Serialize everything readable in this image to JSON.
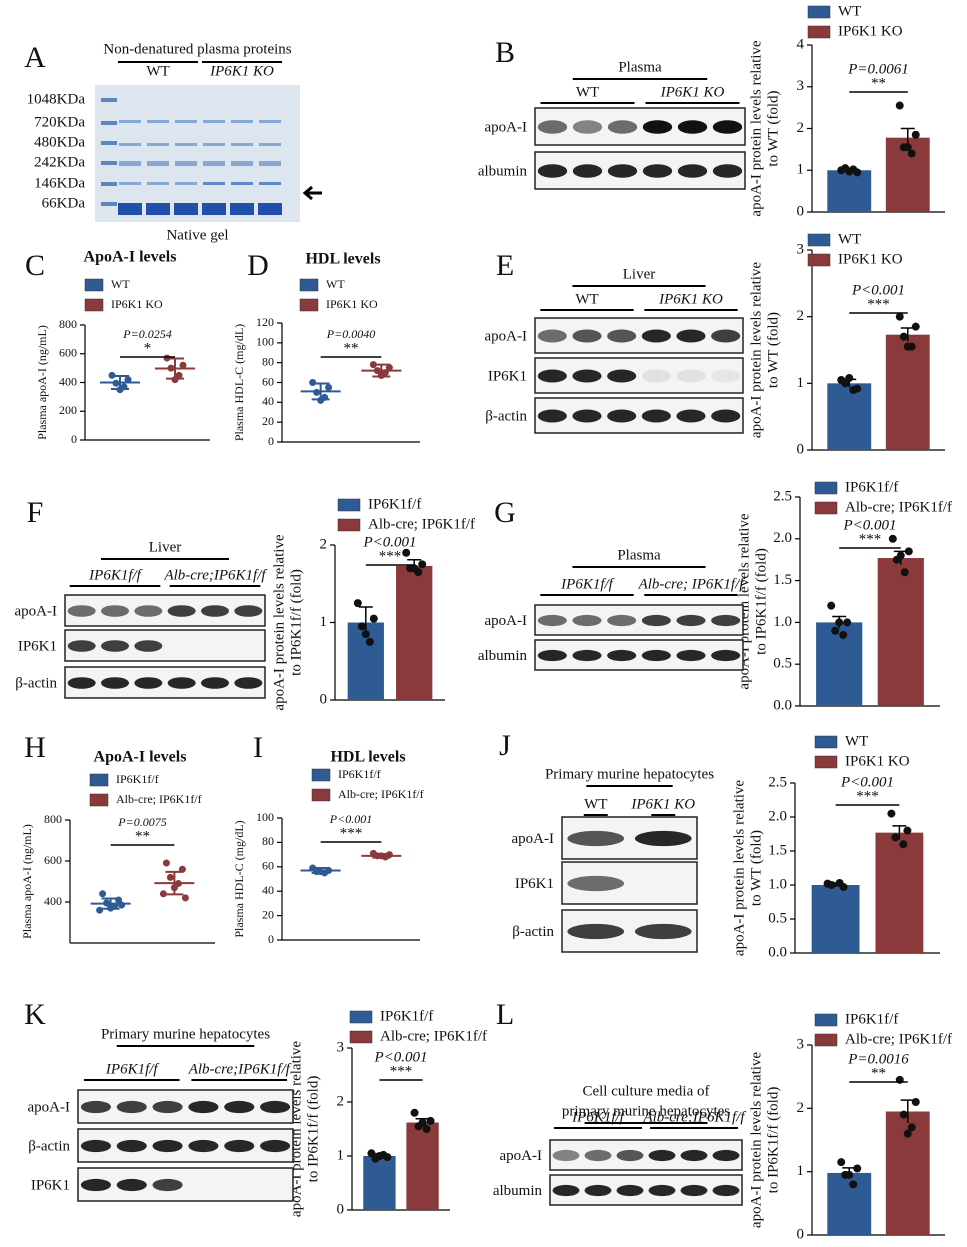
{
  "chart_data": [
    {
      "type": "bar",
      "ylabel": [
        "apoA-I protein levels relative",
        "to WT (fold)"
      ],
      "ylim": [
        0,
        4
      ],
      "yticks": [
        0,
        1,
        2,
        3,
        4
      ],
      "p_text": "P=0.0061",
      "sig": "**",
      "series": [
        {
          "name": "WT",
          "color": "#2f5b95",
          "values": [
            1.0
          ],
          "errors": [
            0.05
          ],
          "points": [
            1.0,
            0.95,
            1.05,
            1.02,
            0.97
          ]
        },
        {
          "name": "IP6K1 KO",
          "color": "#8b3a3b",
          "values": [
            1.78
          ],
          "errors": [
            0.22
          ],
          "points": [
            2.55,
            1.85,
            1.55,
            1.4,
            1.55
          ]
        }
      ]
    },
    {
      "type": "dot",
      "panel": "C",
      "title": "ApoA-I levels",
      "ylabel": [
        "Plasma apoA-I (ng/mL)"
      ],
      "ylim": [
        0,
        800
      ],
      "yticks": [
        0,
        200,
        400,
        600,
        800
      ],
      "p_text": "P=0.0254",
      "sig": "*",
      "series": [
        {
          "name": "WT",
          "color": "#2f5b95",
          "values": [
            400
          ],
          "errors": [
            45
          ],
          "points": [
            450,
            420,
            395,
            370,
            350
          ]
        },
        {
          "name": "IP6K1 KO",
          "color": "#8b3a3b",
          "values": [
            497
          ],
          "errors": [
            70
          ],
          "points": [
            570,
            520,
            500,
            450,
            420
          ]
        }
      ]
    },
    {
      "type": "dot",
      "panel": "D",
      "title": "HDL levels",
      "ylabel": [
        "Plasma HDL-C (mg/dL)"
      ],
      "ylim": [
        0,
        120
      ],
      "yticks": [
        0,
        20,
        40,
        60,
        80,
        100,
        120
      ],
      "p_text": "P=0.0040",
      "sig": "**",
      "series": [
        {
          "name": "WT",
          "color": "#2f5b95",
          "values": [
            51
          ],
          "errors": [
            8
          ],
          "points": [
            60,
            55,
            50,
            45,
            42
          ]
        },
        {
          "name": "IP6K1 KO",
          "color": "#8b3a3b",
          "values": [
            72
          ],
          "errors": [
            6
          ],
          "points": [
            78,
            75,
            72,
            70,
            67
          ]
        }
      ]
    },
    {
      "type": "bar",
      "ylabel": [
        "apoA-I protein levels relative",
        "to WT (fold)"
      ],
      "ylim": [
        0,
        3
      ],
      "yticks": [
        0,
        1,
        2,
        3
      ],
      "p_text": "P<0.001",
      "sig": "***",
      "series": [
        {
          "name": "WT",
          "color": "#2f5b95",
          "values": [
            1.0
          ],
          "errors": [
            0.06
          ],
          "points": [
            1.05,
            0.92,
            1.0,
            0.9,
            1.08
          ]
        },
        {
          "name": "IP6K1 KO",
          "color": "#8b3a3b",
          "values": [
            1.73
          ],
          "errors": [
            0.1
          ],
          "points": [
            2.0,
            1.85,
            1.7,
            1.55,
            1.55
          ]
        }
      ]
    },
    {
      "type": "bar",
      "ylabel": [
        "apoA-I protein levels relative",
        "to IP6K1f/f (fold)"
      ],
      "ylim": [
        0,
        2
      ],
      "yticks": [
        0,
        1,
        2
      ],
      "p_text": "P<0.001",
      "sig": "***",
      "series": [
        {
          "name": "IP6K1f/f",
          "color": "#2f5b95",
          "values": [
            1.0
          ],
          "errors": [
            0.2
          ],
          "points": [
            1.25,
            1.05,
            0.95,
            0.75,
            0.85
          ]
        },
        {
          "name": "Alb-cre; IP6K1f/f",
          "color": "#8b3a3b",
          "values": [
            1.73
          ],
          "errors": [
            0.08
          ],
          "points": [
            1.9,
            1.75,
            1.7,
            1.65,
            1.7
          ]
        }
      ]
    },
    {
      "type": "bar",
      "ylabel": [
        "apoA-I protein levels relative",
        "to IP6K1f/f (fold)"
      ],
      "ylim": [
        0,
        2.5
      ],
      "yticks": [
        {
          "value": 0,
          "label": "0.0"
        },
        0.5,
        {
          "value": 1,
          "label": "1.0"
        },
        1.5,
        {
          "value": 2,
          "label": "2.0"
        },
        2.5
      ],
      "p_text": "P<0.001",
      "sig": "***",
      "series": [
        {
          "name": "IP6K1f/f",
          "color": "#2f5b95",
          "values": [
            1.0
          ],
          "errors": [
            0.07
          ],
          "points": [
            1.2,
            1.0,
            0.9,
            0.85,
            1.0
          ]
        },
        {
          "name": "Alb-cre; IP6K1f/f",
          "color": "#8b3a3b",
          "values": [
            1.77
          ],
          "errors": [
            0.08
          ],
          "points": [
            2.0,
            1.85,
            1.75,
            1.6,
            1.8
          ]
        }
      ]
    },
    {
      "type": "dot",
      "panel": "H",
      "title": "ApoA-I levels",
      "ylabel": [
        "Plasma apoA-I (ng/mL)"
      ],
      "ylim": [
        200,
        800
      ],
      "yticks": [
        400,
        600,
        800
      ],
      "p_text": "P=0.0075",
      "sig": "**",
      "series": [
        {
          "name": "IP6K1f/f",
          "color": "#2f5b95",
          "values": [
            392
          ],
          "errors": [
            25
          ],
          "points": [
            440,
            410,
            395,
            380,
            370,
            360,
            385
          ]
        },
        {
          "name": "Alb-cre; IP6K1f/f",
          "color": "#8b3a3b",
          "values": [
            492
          ],
          "errors": [
            55
          ],
          "points": [
            590,
            560,
            520,
            490,
            470,
            440,
            420
          ]
        }
      ]
    },
    {
      "type": "dot",
      "panel": "I",
      "title": "HDL levels",
      "ylabel": [
        "Plasma HDL-C (mg/dL)"
      ],
      "ylim": [
        0,
        100
      ],
      "yticks": [
        0,
        20,
        40,
        60,
        80,
        100
      ],
      "p_text": "P<0.001",
      "sig": "***",
      "series": [
        {
          "name": "IP6K1f/f",
          "color": "#2f5b95",
          "values": [
            57
          ],
          "errors": [
            2
          ],
          "points": [
            59,
            57,
            56,
            55,
            56
          ]
        },
        {
          "name": "Alb-cre; IP6K1f/f",
          "color": "#8b3a3b",
          "values": [
            69
          ],
          "errors": [
            1.5
          ],
          "points": [
            71,
            70,
            69,
            68,
            69
          ]
        }
      ]
    },
    {
      "type": "bar",
      "ylabel": [
        "apoA-I protein levels relative",
        "to WT (fold)"
      ],
      "ylim": [
        0,
        2.5
      ],
      "yticks": [
        {
          "value": 0,
          "label": "0.0"
        },
        0.5,
        {
          "value": 1,
          "label": "1.0"
        },
        1.5,
        {
          "value": 2,
          "label": "2.0"
        },
        2.5
      ],
      "p_text": "P<0.001",
      "sig": "***",
      "series": [
        {
          "name": "WT",
          "color": "#2f5b95",
          "values": [
            1.0
          ],
          "errors": [
            0.03
          ],
          "points": [
            1.02,
            0.97,
            1.0,
            1.03
          ]
        },
        {
          "name": "IP6K1 KO",
          "color": "#8b3a3b",
          "values": [
            1.77
          ],
          "errors": [
            0.1
          ],
          "points": [
            2.05,
            1.8,
            1.7,
            1.6
          ]
        }
      ]
    },
    {
      "type": "bar",
      "ylabel": [
        "apoA-I protein levels relative",
        "to IP6K1f/f (fold)"
      ],
      "ylim": [
        0,
        3
      ],
      "yticks": [
        0,
        1,
        2,
        3
      ],
      "p_text": "P<0.001",
      "sig": "***",
      "series": [
        {
          "name": "IP6K1f/f",
          "color": "#2f5b95",
          "values": [
            1.0
          ],
          "errors": [
            0.04
          ],
          "points": [
            1.05,
            0.98,
            0.95,
            1.02,
            1.0
          ]
        },
        {
          "name": "Alb-cre; IP6K1f/f",
          "color": "#8b3a3b",
          "values": [
            1.62
          ],
          "errors": [
            0.07
          ],
          "points": [
            1.8,
            1.65,
            1.55,
            1.5,
            1.62
          ]
        }
      ]
    },
    {
      "type": "bar",
      "ylabel": [
        "apoA-I protein levels relative",
        "to IP6K1f/f (fold)"
      ],
      "ylim": [
        0,
        3
      ],
      "yticks": [
        0,
        1,
        2,
        3
      ],
      "p_text": "P=0.0016",
      "sig": "**",
      "series": [
        {
          "name": "IP6K1f/f",
          "color": "#2f5b95",
          "values": [
            0.98
          ],
          "errors": [
            0.08
          ],
          "points": [
            1.15,
            1.05,
            0.95,
            0.8,
            0.95
          ]
        },
        {
          "name": "Alb-cre; IP6K1f/f",
          "color": "#8b3a3b",
          "values": [
            1.95
          ],
          "errors": [
            0.18
          ],
          "points": [
            2.45,
            2.1,
            1.9,
            1.7,
            1.6
          ]
        }
      ]
    }
  ],
  "blots": [
    {
      "panel": "A",
      "header": [
        "Non-denatured plasma proteins"
      ],
      "groups": [
        "WT",
        "IP6K1 KO"
      ],
      "markers": [
        "1048KDa",
        "720KDa",
        "480KDa",
        "242KDa",
        "146KDa",
        "66KDa"
      ],
      "footer": "Native gel",
      "rows": []
    },
    {
      "panel": "B",
      "header": [
        "Plasma"
      ],
      "groups": [
        "WT",
        "IP6K1 KO"
      ],
      "rows": [
        "apoA-I",
        "albumin"
      ]
    },
    {
      "panel": "E",
      "header": [
        "Liver"
      ],
      "groups": [
        "WT",
        "IP6K1 KO"
      ],
      "rows": [
        "apoA-I",
        "IP6K1",
        "β-actin"
      ]
    },
    {
      "panel": "F",
      "header": [
        "Liver"
      ],
      "groups": [
        "IP6K1f/f",
        "Alb-cre;IP6K1f/f"
      ],
      "rows": [
        "apoA-I",
        "IP6K1",
        "β-actin"
      ]
    },
    {
      "panel": "G",
      "header": [
        "Plasma"
      ],
      "groups": [
        "IP6K1f/f",
        "Alb-cre; IP6K1f/f"
      ],
      "rows": [
        "apoA-I",
        "albumin"
      ]
    },
    {
      "panel": "J",
      "header": [
        "Primary murine hepatocytes"
      ],
      "groups": [
        "WT",
        "IP6K1 KO"
      ],
      "rows": [
        "apoA-I",
        "IP6K1",
        "β-actin"
      ]
    },
    {
      "panel": "K",
      "header": [
        "Primary murine hepatocytes"
      ],
      "groups": [
        "IP6K1f/f",
        "Alb-cre;IP6K1f/f"
      ],
      "rows": [
        "apoA-I",
        "β-actin",
        "IP6K1"
      ]
    },
    {
      "panel": "L",
      "header": [
        "Cell culture media of",
        "primary murine hepatocytes"
      ],
      "groups": [
        "IP6K1f/f",
        "Alb-cre;IP6K1f/f"
      ],
      "rows": [
        "apoA-I",
        "albumin"
      ]
    }
  ]
}
